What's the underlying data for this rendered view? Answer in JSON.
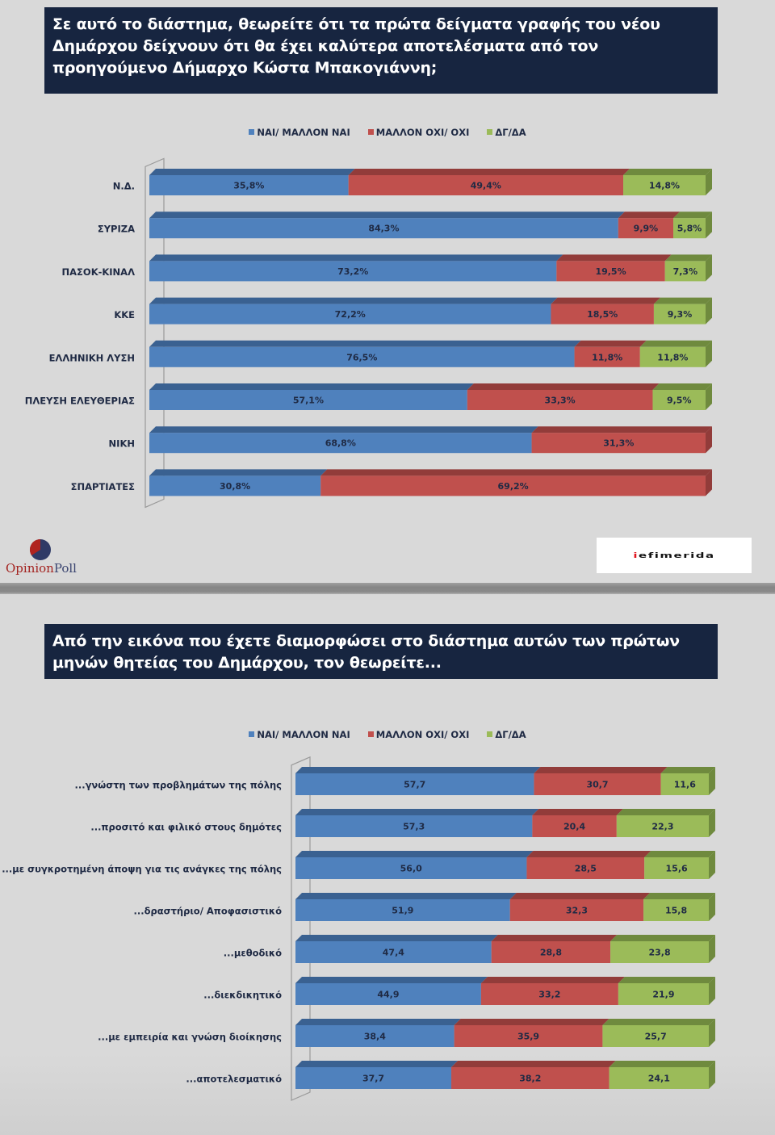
{
  "legend": [
    {
      "label": "ΝΑΙ/ ΜΑΛΛΟΝ ΝΑΙ",
      "color": "#4f81bd"
    },
    {
      "label": "ΜΑΛΛΟΝ ΟΧΙ/ ΟΧΙ",
      "color": "#c0504d"
    },
    {
      "label": "ΔΓ/ΔΑ",
      "color": "#9bbb59"
    }
  ],
  "colors": {
    "yes": "#4f81bd",
    "yes_dark": "#3a6191",
    "no": "#c0504d",
    "no_dark": "#923c3a",
    "dk": "#9bbb59",
    "dk_dark": "#6f8a3e",
    "title_bg": "#172540",
    "label_text": "#1f2a44"
  },
  "logos": {
    "opinionpoll_part1": "Opinion",
    "opinionpoll_part2": "Poll",
    "iefimerida_first": "i",
    "iefimerida_rest": "efimerida"
  },
  "chart_data": [
    {
      "type": "bar",
      "stacked": true,
      "orientation": "horizontal",
      "title": "Σε αυτό το διάστημα, θεωρείτε ότι τα πρώτα δείγματα γραφής του νέου Δημάρχου δείχνουν ότι θα έχει καλύτερα αποτελέσματα από τον προηγούμενο Δήμαρχο Κώστα Μπακογιάννη;",
      "xlabel": "",
      "ylabel": "",
      "xlim": [
        0,
        100
      ],
      "legend_position": "top",
      "value_suffix": "%",
      "categories": [
        "Ν.Δ.",
        "ΣΥΡΙΖΑ",
        "ΠΑΣΟΚ-ΚΙΝΑΛ",
        "ΚΚΕ",
        "ΕΛΛΗΝΙΚΗ ΛΥΣΗ",
        "ΠΛΕΥΣΗ ΕΛΕΥΘΕΡΙΑΣ",
        "ΝΙΚΗ",
        "ΣΠΑΡΤΙΑΤΕΣ"
      ],
      "series": [
        {
          "name": "ΝΑΙ/ ΜΑΛΛΟΝ ΝΑΙ",
          "values": [
            35.8,
            84.3,
            73.2,
            72.2,
            76.5,
            57.1,
            68.8,
            30.8
          ]
        },
        {
          "name": "ΜΑΛΛΟΝ ΟΧΙ/ ΟΧΙ",
          "values": [
            49.4,
            9.9,
            19.5,
            18.5,
            11.8,
            33.3,
            31.3,
            69.2
          ]
        },
        {
          "name": "ΔΓ/ΔΑ",
          "values": [
            14.8,
            5.8,
            7.3,
            9.3,
            11.8,
            9.5,
            0,
            0
          ]
        }
      ]
    },
    {
      "type": "bar",
      "stacked": true,
      "orientation": "horizontal",
      "title": "Από την εικόνα που έχετε διαμορφώσει στο διάστημα αυτών των πρώτων μηνών θητείας του Δημάρχου, τον θεωρείτε...",
      "xlabel": "",
      "ylabel": "",
      "xlim": [
        0,
        100
      ],
      "legend_position": "top",
      "value_suffix": "",
      "categories": [
        "...γνώστη των προβλημάτων της πόλης",
        "...προσιτό και φιλικό στους δημότες",
        "...με συγκροτημένη άποψη για τις ανάγκες της πόλης",
        "...δραστήριο/ Αποφασιστικό",
        "...μεθοδικό",
        "...διεκδικητικό",
        "...με εμπειρία και γνώση διοίκησης",
        "...αποτελεσματικό"
      ],
      "series": [
        {
          "name": "ΝΑΙ/ ΜΑΛΛΟΝ ΝΑΙ",
          "values": [
            57.7,
            57.3,
            56.0,
            51.9,
            47.4,
            44.9,
            38.4,
            37.7
          ]
        },
        {
          "name": "ΜΑΛΛΟΝ ΟΧΙ/ ΟΧΙ",
          "values": [
            30.7,
            20.4,
            28.5,
            32.3,
            28.8,
            33.2,
            35.9,
            38.2
          ]
        },
        {
          "name": "ΔΓ/ΔΑ",
          "values": [
            11.6,
            22.3,
            15.6,
            15.8,
            23.8,
            21.9,
            25.7,
            24.1
          ]
        }
      ]
    }
  ]
}
